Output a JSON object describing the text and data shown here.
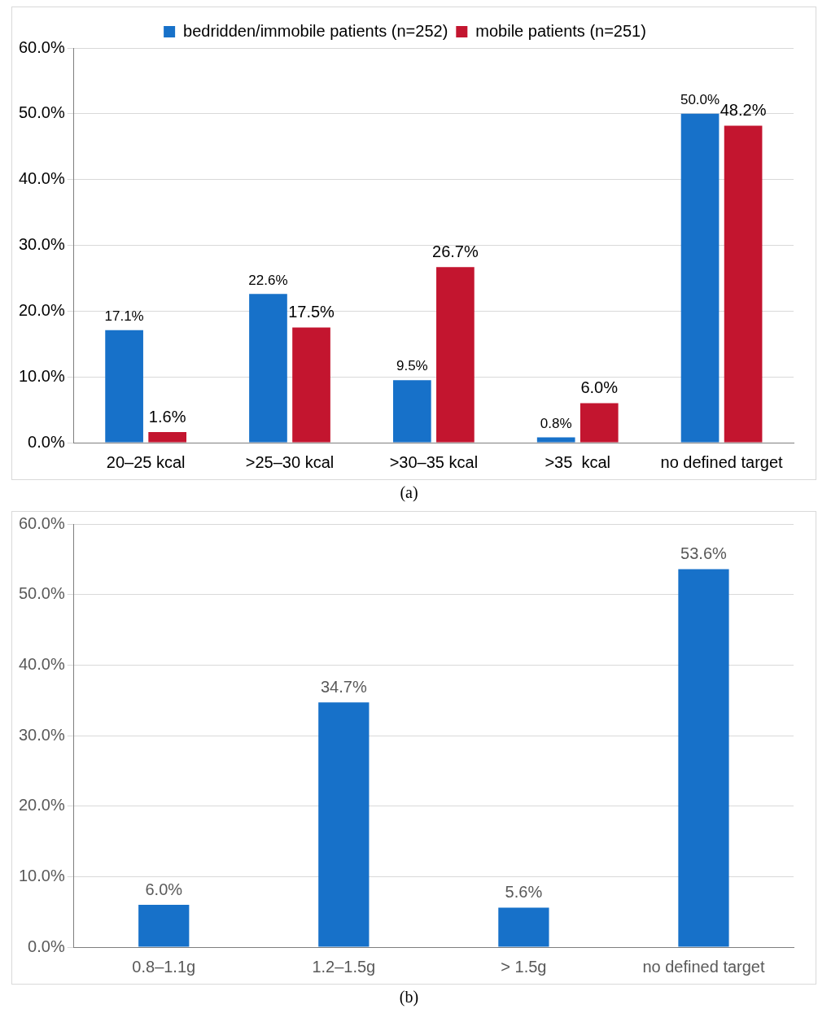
{
  "chart_data": [
    {
      "type": "bar",
      "categories": [
        "20–25 kcal",
        ">25–30 kcal",
        ">30–35 kcal",
        ">35  kcal",
        "no defined target"
      ],
      "series": [
        {
          "name": "bedridden/immobile patients (n=252)",
          "color": "#1771c9",
          "values": [
            17.1,
            22.6,
            9.5,
            0.8,
            50.0
          ],
          "value_labels": [
            "17.1%",
            "22.6%",
            "9.5%",
            "0.8%",
            "50.0%"
          ]
        },
        {
          "name": "mobile patients (n=251)",
          "color": "#c3152f",
          "values": [
            1.6,
            17.5,
            26.7,
            6.0,
            48.2
          ],
          "value_labels": [
            "1.6%",
            "17.5%",
            "26.7%",
            "6.0%",
            "48.2%"
          ]
        }
      ],
      "ylim": [
        0,
        60
      ],
      "yticks": [
        {
          "value": 0,
          "label": "0.0%"
        },
        {
          "value": 10,
          "label": "10.0%"
        },
        {
          "value": 20,
          "label": "20.0%"
        },
        {
          "value": 30,
          "label": "30.0%"
        },
        {
          "value": 40,
          "label": "40.0%"
        },
        {
          "value": 50,
          "label": "50.0%"
        },
        {
          "value": 60,
          "label": "60.0%"
        }
      ],
      "grid": "y",
      "legend": "top",
      "annotations": [
        "(a)"
      ]
    },
    {
      "type": "bar",
      "categories": [
        "0.8–1.1g",
        "1.2–1.5g",
        "> 1.5g",
        "no defined target"
      ],
      "series": [
        {
          "color": "#1771c9",
          "values": [
            6.0,
            34.7,
            5.6,
            53.6
          ],
          "value_labels": [
            "6.0%",
            "34.7%",
            "5.6%",
            "53.6%"
          ]
        }
      ],
      "ylim": [
        0,
        60
      ],
      "yticks": [
        {
          "value": 0,
          "label": "0.0%"
        },
        {
          "value": 10,
          "label": "10.0%"
        },
        {
          "value": 20,
          "label": "20.0%"
        },
        {
          "value": 30,
          "label": "30.0%"
        },
        {
          "value": 40,
          "label": "40.0%"
        },
        {
          "value": 50,
          "label": "50.0%"
        },
        {
          "value": 60,
          "label": "60.0%"
        }
      ],
      "grid": "y",
      "annotations": [
        "(b)"
      ]
    }
  ]
}
